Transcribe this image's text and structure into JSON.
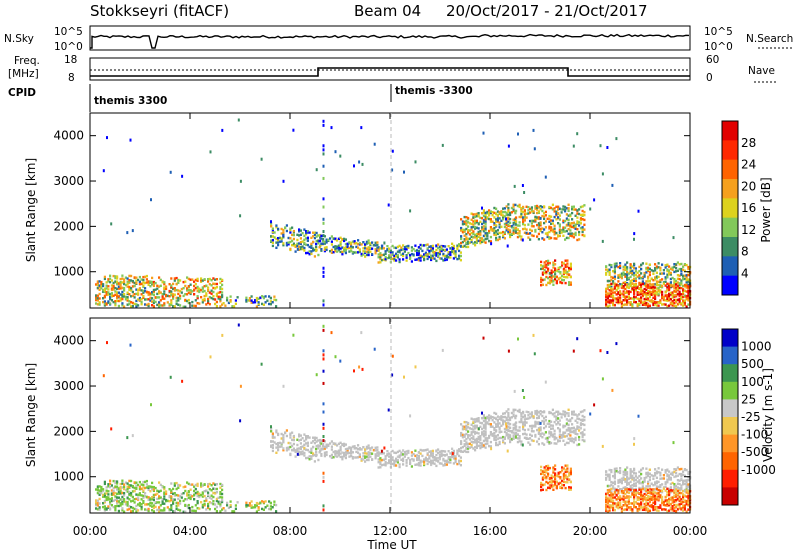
{
  "header": {
    "station": "Stokkseyri (fitACF)",
    "beam": "Beam 04",
    "date_range": "20/Oct/2017 - 21/Oct/2017"
  },
  "status_panel": {
    "left_labels": {
      "nsky": "N.Sky",
      "freq": "Freq.",
      "freq_unit": "[MHz]",
      "cpid": "CPID"
    },
    "right_labels": {
      "nsearch": "N.Search",
      "nave": "Nave"
    },
    "nsky_ticks": {
      "top": "10^5",
      "bottom": "10^0"
    },
    "freq_ticks": {
      "top": "18",
      "bottom": "8"
    },
    "nave_ticks": {
      "top": "60",
      "bottom": "0"
    },
    "cpid_labels": [
      {
        "text": "themis 3300",
        "start_hour": 0
      },
      {
        "text": "themis -3300",
        "start_hour": 12
      }
    ]
  },
  "colors": {
    "power_scale": [
      "#0000ff",
      "#1e5fb4",
      "#3c8c64",
      "#82c85a",
      "#dcd21e",
      "#f5a01e",
      "#ff6400",
      "#ff2800",
      "#e10000"
    ],
    "velocity_scale": [
      "#0000c8",
      "#2864c8",
      "#3c9650",
      "#78c83c",
      "#c8c8c8",
      "#f0c850",
      "#ff9628",
      "#ff6400",
      "#ff1e00",
      "#c80000"
    ],
    "ground_scatter": "#c0c0c0"
  },
  "chart_data": [
    {
      "type": "heatmap",
      "name": "power",
      "xlabel": "",
      "ylabel": "Slant Range [km]",
      "x_range_hours": [
        0,
        24
      ],
      "ylim": [
        200,
        4500
      ],
      "y_ticks": [
        "1000",
        "2000",
        "3000",
        "4000"
      ],
      "colorbar": {
        "label": "Power [dB]",
        "ticks": [
          "4",
          "8",
          "12",
          "16",
          "20",
          "24",
          "28"
        ]
      }
    },
    {
      "type": "heatmap",
      "name": "velocity",
      "xlabel": "Time UT",
      "ylabel": "Slant Range [km]",
      "x_range_hours": [
        0,
        24
      ],
      "ylim": [
        200,
        4500
      ],
      "x_tick_labels": [
        "00:00",
        "04:00",
        "08:00",
        "12:00",
        "16:00",
        "20:00",
        "00:00"
      ],
      "y_ticks": [
        "1000",
        "2000",
        "3000",
        "4000"
      ],
      "colorbar": {
        "label": "Velocity [m s-1]",
        "ticks": [
          "1000",
          "500",
          "100",
          "25",
          "-25",
          "-100",
          "-500",
          "-1000"
        ]
      }
    }
  ],
  "echo_regions": [
    {
      "t0": 0.2,
      "t1": 2.3,
      "r0": 230,
      "r1": 900,
      "strength": 0.55,
      "vel": "mixed",
      "density": 0.55
    },
    {
      "t0": 2.3,
      "t1": 5.3,
      "r0": 230,
      "r1": 850,
      "strength": 0.6,
      "vel": "mixed",
      "density": 0.45
    },
    {
      "t0": 5.3,
      "t1": 7.5,
      "r0": 230,
      "r1": 450,
      "strength": 0.35,
      "vel": "mixed",
      "density": 0.3
    },
    {
      "t0": 7.2,
      "t1": 9.2,
      "r0": 1550,
      "r1": 2050,
      "strength": 0.35,
      "vel": "gs",
      "density": 0.45,
      "slope": -250
    },
    {
      "t0": 9.0,
      "t1": 11.5,
      "r0": 1450,
      "r1": 1800,
      "strength": 0.35,
      "vel": "gs",
      "density": 0.55,
      "slope": -150
    },
    {
      "t0": 11.5,
      "t1": 14.8,
      "r0": 1200,
      "r1": 1550,
      "strength": 0.3,
      "vel": "gs",
      "density": 0.6,
      "slope": 50
    },
    {
      "t0": 14.8,
      "t1": 17.0,
      "r0": 1500,
      "r1": 2200,
      "strength": 0.5,
      "vel": "gs",
      "density": 0.55,
      "slope": 300
    },
    {
      "t0": 17.0,
      "t1": 19.8,
      "r0": 1700,
      "r1": 2450,
      "strength": 0.55,
      "vel": "gs",
      "density": 0.45,
      "slope": 0
    },
    {
      "t0": 18.0,
      "t1": 19.2,
      "r0": 700,
      "r1": 1200,
      "strength": 0.75,
      "vel": "neg",
      "density": 0.55
    },
    {
      "t0": 20.6,
      "t1": 24.0,
      "r0": 650,
      "r1": 1150,
      "strength": 0.5,
      "vel": "gs",
      "density": 0.5
    },
    {
      "t0": 20.6,
      "t1": 24.0,
      "r0": 230,
      "r1": 700,
      "strength": 0.9,
      "vel": "neg",
      "density": 0.7
    }
  ]
}
